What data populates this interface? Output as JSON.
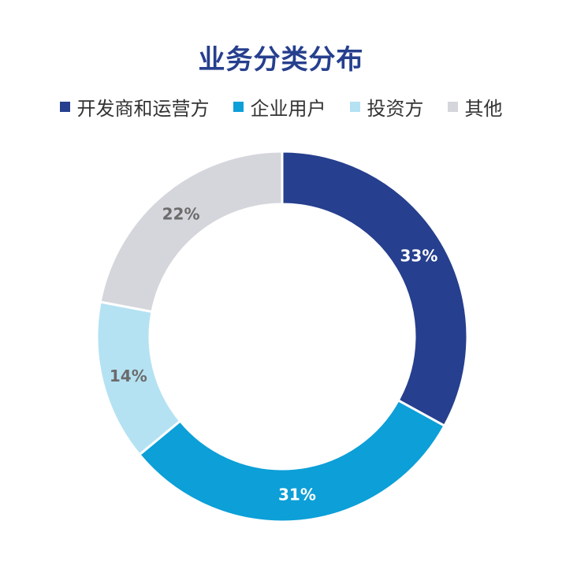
{
  "chart_data": {
    "type": "pie",
    "title": "业务分类分布",
    "legend_position": "top",
    "series": [
      {
        "name": "开发商和运营方",
        "value": 33,
        "label": "33%",
        "color": "#263f8e",
        "label_color": "#ffffff"
      },
      {
        "name": "企业用户",
        "value": 31,
        "label": "31%",
        "color": "#0c9fd8",
        "label_color": "#ffffff"
      },
      {
        "name": "投资方",
        "value": 14,
        "label": "14%",
        "color": "#b4e2f3",
        "label_color": "#6b6b6b"
      },
      {
        "name": "其他",
        "value": 22,
        "label": "22%",
        "color": "#d5d6dc",
        "label_color": "#6b6b6b"
      }
    ]
  }
}
